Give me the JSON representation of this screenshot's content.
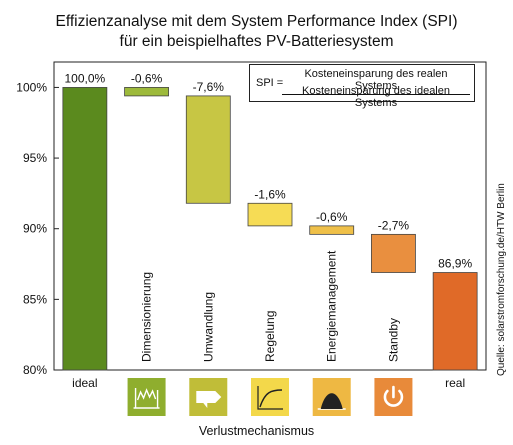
{
  "chart_data": {
    "type": "bar",
    "subtype": "waterfall",
    "title": "Effizienzanalyse mit dem System Performance Index (SPI)",
    "subtitle": "für ein beispielhaftes PV-Batteriesystem",
    "xlabel": "Verlustmechanismus",
    "ylabel": "",
    "ylim": [
      80,
      101.8
    ],
    "yticks": [
      "80%",
      "85%",
      "90%",
      "95%",
      "100%"
    ],
    "ytick_values": [
      80,
      85,
      90,
      95,
      100
    ],
    "grid": false,
    "categories": [
      "ideal",
      "Dimensionierung",
      "Umwandlung",
      "Regelung",
      "Energiemanagement",
      "Standby",
      "real"
    ],
    "bars": [
      {
        "category": "ideal",
        "label": "100,0%",
        "start": 80,
        "end": 100,
        "color": "#5b8a1e",
        "kind": "total"
      },
      {
        "category": "Dimensionierung",
        "label": "-0,6%",
        "start": 99.4,
        "end": 100,
        "color": "#9dba3b",
        "kind": "loss"
      },
      {
        "category": "Umwandlung",
        "label": "-7,6%",
        "start": 91.8,
        "end": 99.4,
        "color": "#c7c644",
        "kind": "loss"
      },
      {
        "category": "Regelung",
        "label": "-1,6%",
        "start": 90.2,
        "end": 91.8,
        "color": "#f6dc55",
        "kind": "loss"
      },
      {
        "category": "Energiemanagement",
        "label": "-0,6%",
        "start": 89.6,
        "end": 90.2,
        "color": "#efc049",
        "kind": "loss"
      },
      {
        "category": "Standby",
        "label": "-2,7%",
        "start": 86.9,
        "end": 89.6,
        "color": "#e98f3f",
        "kind": "loss"
      },
      {
        "category": "real",
        "label": "86,9%",
        "start": 80,
        "end": 86.9,
        "color": "#e06a28",
        "kind": "total"
      }
    ],
    "icons": [
      {
        "category": "Dimensionierung",
        "icon": "solar-panel-with-graph-icon",
        "color": "#8fae2e"
      },
      {
        "category": "Umwandlung",
        "icon": "inverter-arrow-icon",
        "color": "#c0bd38"
      },
      {
        "category": "Regelung",
        "icon": "control-curve-icon",
        "color": "#f3d84a"
      },
      {
        "category": "Energiemanagement",
        "icon": "energy-curve-icon",
        "color": "#eeb843"
      },
      {
        "category": "Standby",
        "icon": "power-button-icon",
        "color": "#e88a3a"
      }
    ],
    "formula": {
      "lhs": "SPI =",
      "numerator": "Kosteneinsparung des realen Systems",
      "denominator": "Kosteneinsparung des idealen Systems"
    },
    "source": "Quelle: solarstromforschung.de/HTW Berlin"
  }
}
